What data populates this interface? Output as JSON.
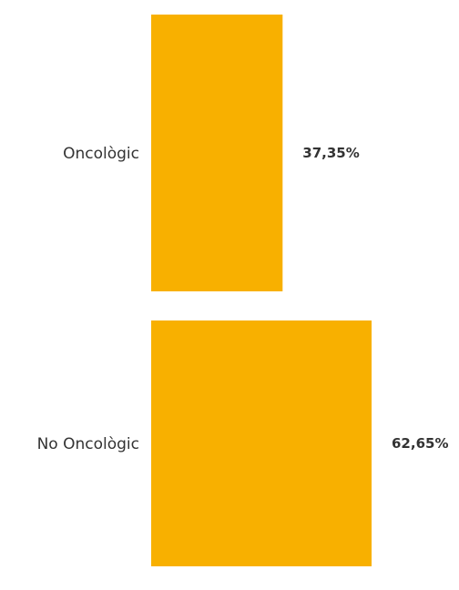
{
  "chart_data": {
    "type": "bar",
    "orientation": "horizontal",
    "categories": [
      "Oncològic",
      "No Oncològic"
    ],
    "values": [
      37.35,
      62.65
    ],
    "value_labels": [
      "37,35%",
      "62,65%"
    ],
    "unit": "%",
    "bar_color": "#F8B000",
    "title": "",
    "xlabel": "",
    "ylabel": "",
    "xlim": [
      0,
      62.65
    ],
    "grid": false,
    "legend": "none"
  }
}
